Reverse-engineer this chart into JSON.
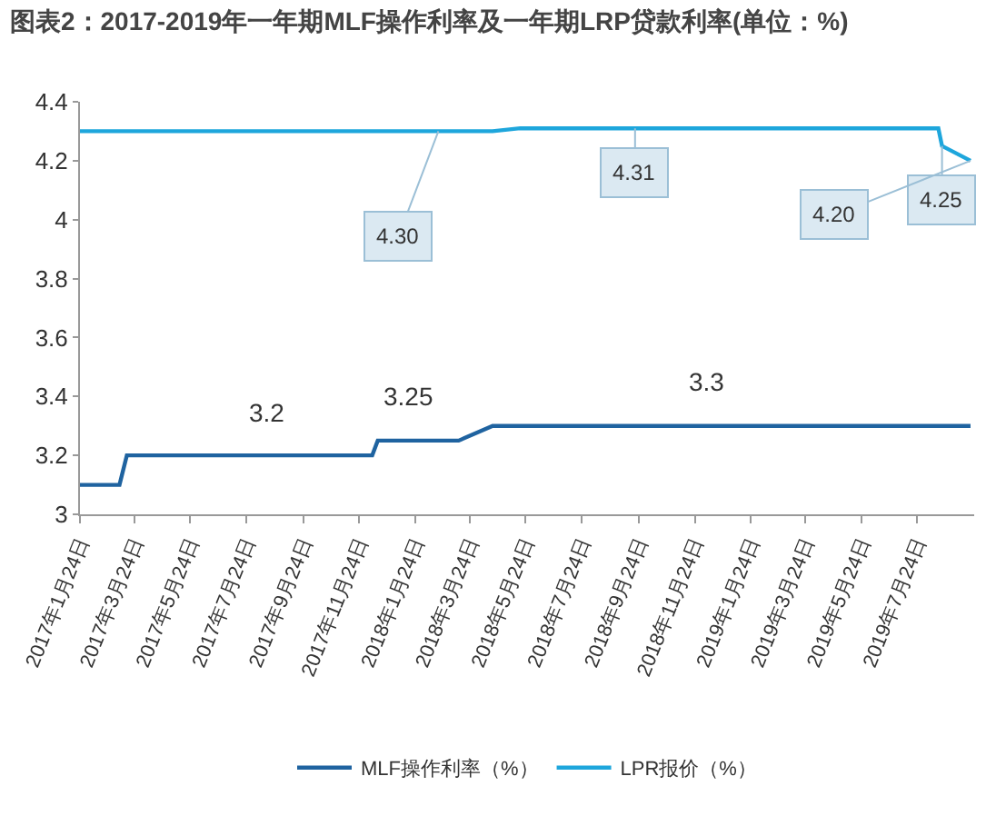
{
  "chart_data": {
    "type": "line",
    "title": "图表2：2017-2019年一年期MLF操作利率及一年期LRP贷款利率(单位：%)",
    "series": [
      {
        "name": "MLF操作利率（%）",
        "color": "#1f63a0",
        "x": [
          "2017-01-24",
          "2017-03-08",
          "2017-03-16",
          "2017-12-08",
          "2017-12-14",
          "2018-03-12",
          "2018-04-18",
          "2019-09-20"
        ],
        "values": [
          3.1,
          3.1,
          3.2,
          3.2,
          3.25,
          3.25,
          3.3,
          3.3
        ]
      },
      {
        "name": "LPR报价（%）",
        "color": "#1ea6dc",
        "x": [
          "2017-01-24",
          "2018-04-18",
          "2018-05-18",
          "2019-08-16",
          "2019-08-20",
          "2019-09-20"
        ],
        "values": [
          4.3,
          4.3,
          4.31,
          4.31,
          4.25,
          4.2
        ]
      }
    ],
    "xlim": [
      "2017-01-24",
      "2019-09-24"
    ],
    "xticks": [
      {
        "value": "2017-01-24",
        "label": "2017年1月24日"
      },
      {
        "value": "2017-03-24",
        "label": "2017年3月24日"
      },
      {
        "value": "2017-05-24",
        "label": "2017年5月24日"
      },
      {
        "value": "2017-07-24",
        "label": "2017年7月24日"
      },
      {
        "value": "2017-09-24",
        "label": "2017年9月24日"
      },
      {
        "value": "2017-11-24",
        "label": "2017年11月24日"
      },
      {
        "value": "2018-01-24",
        "label": "2018年1月24日"
      },
      {
        "value": "2018-03-24",
        "label": "2018年3月24日"
      },
      {
        "value": "2018-05-24",
        "label": "2018年5月24日"
      },
      {
        "value": "2018-07-24",
        "label": "2018年7月24日"
      },
      {
        "value": "2018-09-24",
        "label": "2018年9月24日"
      },
      {
        "value": "2018-11-24",
        "label": "2018年11月24日"
      },
      {
        "value": "2019-01-24",
        "label": "2019年1月24日"
      },
      {
        "value": "2019-03-24",
        "label": "2019年3月24日"
      },
      {
        "value": "2019-05-24",
        "label": "2019年5月24日"
      },
      {
        "value": "2019-07-24",
        "label": "2019年7月24日"
      }
    ],
    "ylim": [
      3,
      4.4
    ],
    "yticks": [
      3,
      3.2,
      3.4,
      3.6,
      3.8,
      4,
      4.2,
      4.4
    ],
    "annotations": [
      {
        "text": "3.2",
        "x": "2017-08-16",
        "y": 3.2
      },
      {
        "text": "3.25",
        "x": "2018-01-16",
        "y": 3.25
      },
      {
        "text": "3.3",
        "x": "2018-12-07",
        "y": 3.3
      },
      {
        "text": "4.30",
        "x": "2018-02-18",
        "y": 4.3
      },
      {
        "text": "4.31",
        "x": "2018-09-20",
        "y": 4.31
      },
      {
        "text": "4.25",
        "x": "2019-08-20",
        "y": 4.25
      },
      {
        "text": "4.20",
        "x": "2019-09-20",
        "y": 4.2
      }
    ],
    "grid": false,
    "legend": "bottom",
    "marker": "none",
    "line_style": "solid"
  }
}
